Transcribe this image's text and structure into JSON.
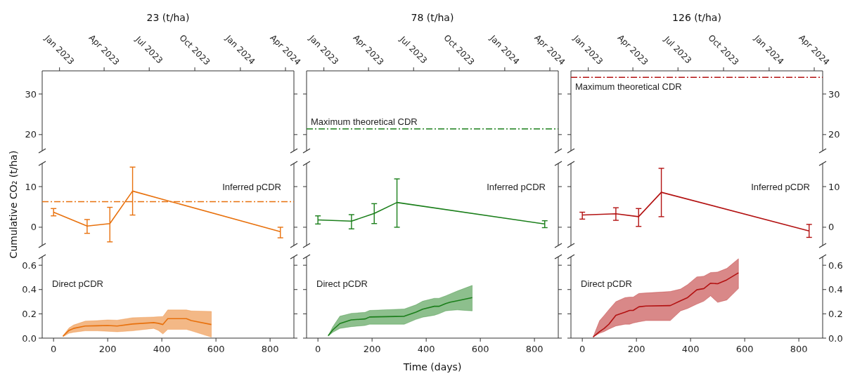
{
  "chart_data": [
    {
      "type": "line",
      "title": "23 (t/ha)",
      "ylim": [
        16,
        35.7
      ],
      "yticks": [
        20,
        30
      ],
      "xlim": [
        "2022-11-27",
        "2024-04-18"
      ],
      "xticks": [
        {
          "value": "2023-01-01",
          "label": "Jan 2023"
        },
        {
          "value": "2023-04-01",
          "label": "Apr 2023"
        },
        {
          "value": "2023-07-01",
          "label": "Jul 2023"
        },
        {
          "value": "2023-10-01",
          "label": "Oct 2023"
        },
        {
          "value": "2024-01-01",
          "label": "Jan 2024"
        },
        {
          "value": "2024-04-01",
          "label": "Apr 2024"
        }
      ]
    },
    {
      "type": "line",
      "title": "78 (t/ha)",
      "ylim": [
        16,
        35.7
      ],
      "yticks": [
        20,
        30
      ],
      "tick_labels": "x",
      "xlim": [
        "2022-11-27",
        "2024-04-18"
      ],
      "xticks": [
        {
          "value": "2023-01-01",
          "label": "Jan 2023"
        },
        {
          "value": "2023-04-01",
          "label": "Apr 2023"
        },
        {
          "value": "2023-07-01",
          "label": "Jul 2023"
        },
        {
          "value": "2023-10-01",
          "label": "Oct 2023"
        },
        {
          "value": "2024-01-01",
          "label": "Jan 2024"
        },
        {
          "value": "2024-04-01",
          "label": "Apr 2024"
        }
      ],
      "ref_lines": [
        {
          "axis": "y",
          "value": 21.4,
          "label": "Maximum theoretical CDR",
          "color": "#1b7f1b",
          "line_style": "dashdot"
        }
      ]
    },
    {
      "type": "line",
      "title": "126 (t/ha)",
      "y2lim": [
        16,
        35.7
      ],
      "y2ticks": [
        20,
        30
      ],
      "xlim": [
        "2022-11-27",
        "2024-04-18"
      ],
      "xticks": [
        {
          "value": "2023-01-01",
          "label": "Jan 2023"
        },
        {
          "value": "2023-04-01",
          "label": "Apr 2023"
        },
        {
          "value": "2023-07-01",
          "label": "Jul 2023"
        },
        {
          "value": "2023-10-01",
          "label": "Oct 2023"
        },
        {
          "value": "2024-01-01",
          "label": "Jan 2024"
        },
        {
          "value": "2024-04-01",
          "label": "Apr 2024"
        }
      ],
      "ref_lines": [
        {
          "axis": "y2",
          "value": 34.1,
          "label": "Maximum theoretical CDR",
          "color": "#b31212",
          "line_style": "dashdot"
        }
      ]
    },
    {
      "type": "line",
      "ylabel": "Cumulative CO₂ (t/ha)",
      "xlim": [
        -42,
        888
      ],
      "ylim": [
        -4.5,
        15.7
      ],
      "yticks": [
        0,
        10
      ],
      "tick_labels": "y",
      "annotations": [
        "Inferred pCDR"
      ],
      "ref_lines": [
        {
          "axis": "y",
          "value": 6.3,
          "color": "#e8710d",
          "line_style": "dashdot"
        }
      ],
      "series": [
        {
          "color": "#e8710d",
          "x": [
            0,
            124,
            208,
            292,
            838
          ],
          "values": [
            3.7,
            0.3,
            0.9,
            8.9,
            -1.1
          ],
          "errors": [
            [
              2.8,
              4.6
            ],
            [
              -1.5,
              1.9
            ],
            [
              -3.6,
              4.9
            ],
            [
              3.0,
              14.8
            ],
            [
              -2.6,
              0
            ]
          ]
        }
      ]
    },
    {
      "type": "line",
      "xlim": [
        -42,
        888
      ],
      "ylim": [
        -4.5,
        15.7
      ],
      "yticks": [
        0,
        10
      ],
      "tick_labels": false,
      "annotations": [
        "Inferred pCDR"
      ],
      "series": [
        {
          "color": "#1b7f1b",
          "x": [
            0,
            124,
            208,
            292,
            838
          ],
          "values": [
            1.8,
            1.5,
            3.4,
            6.1,
            0.8
          ],
          "errors": [
            [
              0.8,
              2.8
            ],
            [
              -0.4,
              3.1
            ],
            [
              0.9,
              5.8
            ],
            [
              0,
              11.9
            ],
            [
              -0.1,
              1.6
            ]
          ]
        }
      ]
    },
    {
      "type": "line",
      "xlim": [
        -42,
        888
      ],
      "y2lim": [
        -4.5,
        15.7
      ],
      "y2ticks": [
        0,
        10
      ],
      "annotations": [
        "Inferred pCDR"
      ],
      "series": [
        {
          "color": "#b31212",
          "axis": "y2",
          "x": [
            0,
            124,
            208,
            292,
            838
          ],
          "values": [
            3.0,
            3.3,
            2.6,
            8.6,
            -0.9
          ],
          "errors": [
            [
              2.0,
              3.7
            ],
            [
              1.7,
              4.8
            ],
            [
              0.2,
              4.6
            ],
            [
              2.6,
              14.5
            ],
            [
              -2.5,
              0.7
            ]
          ]
        }
      ]
    },
    {
      "type": "line",
      "xlim": [
        -42,
        888
      ],
      "xticks": [
        0,
        200,
        400,
        600,
        800
      ],
      "ylim": [
        0,
        0.67
      ],
      "yticks": [
        {
          "value": 0,
          "label": "0.0"
        },
        {
          "value": 0.2,
          "label": "0.2"
        },
        {
          "value": 0.4,
          "label": "0.4"
        },
        {
          "value": 0.6,
          "label": "0.6"
        }
      ],
      "annotations": [
        "Direct pCDR"
      ],
      "series": [
        {
          "color": "#e8710d",
          "x": [
            35,
            57,
            74,
            117,
            161,
            200,
            235,
            291,
            370,
            387,
            404,
            422,
            491,
            509,
            583
          ],
          "values": [
            0.016,
            0.064,
            0.08,
            0.1,
            0.102,
            0.104,
            0.1,
            0.116,
            0.128,
            0.122,
            0.112,
            0.16,
            0.16,
            0.144,
            0.112
          ],
          "upper": [
            0.02,
            0.084,
            0.108,
            0.14,
            0.144,
            0.15,
            0.148,
            0.168,
            0.174,
            0.176,
            0.178,
            0.232,
            0.232,
            0.224,
            0.22
          ],
          "lower": [
            0.012,
            0.04,
            0.048,
            0.06,
            0.06,
            0.056,
            0.052,
            0.06,
            0.08,
            0.064,
            0.034,
            0.072,
            0.072,
            0.06,
            0.008
          ]
        }
      ]
    },
    {
      "type": "line",
      "xlabel": "Time (days)",
      "xlim": [
        -42,
        888
      ],
      "xticks": [
        0,
        200,
        400,
        600,
        800
      ],
      "ylim": [
        0,
        0.67
      ],
      "yticks": [
        0,
        0.2,
        0.4,
        0.6
      ],
      "tick_labels": "x",
      "annotations": [
        "Direct pCDR"
      ],
      "series": [
        {
          "color": "#1b7f1b",
          "x": [
            38,
            55,
            81,
            123,
            174,
            191,
            319,
            362,
            387,
            430,
            447,
            472,
            489,
            515,
            570
          ],
          "values": [
            0.02,
            0.068,
            0.12,
            0.15,
            0.158,
            0.174,
            0.18,
            0.214,
            0.238,
            0.262,
            0.262,
            0.284,
            0.296,
            0.308,
            0.334
          ],
          "upper": [
            0.02,
            0.094,
            0.18,
            0.204,
            0.212,
            0.228,
            0.24,
            0.274,
            0.304,
            0.328,
            0.328,
            0.348,
            0.364,
            0.388,
            0.434
          ],
          "lower": [
            0.016,
            0.048,
            0.08,
            0.094,
            0.104,
            0.114,
            0.114,
            0.154,
            0.172,
            0.188,
            0.2,
            0.224,
            0.228,
            0.232,
            0.224
          ]
        }
      ]
    },
    {
      "type": "line",
      "xlim": [
        -42,
        888
      ],
      "xticks": [
        0,
        200,
        400,
        600,
        800
      ],
      "y2lim": [
        0,
        0.67
      ],
      "y2ticks": [
        {
          "value": 0,
          "label": "0.0"
        },
        {
          "value": 0.2,
          "label": "0.2"
        },
        {
          "value": 0.4,
          "label": "0.4"
        },
        {
          "value": 0.6,
          "label": "0.6"
        }
      ],
      "tick_labels": "x",
      "annotations": [
        "Direct pCDR"
      ],
      "series": [
        {
          "color": "#b31212",
          "axis": "y2",
          "x": [
            40,
            64,
            81,
            98,
            124,
            158,
            175,
            188,
            209,
            235,
            325,
            363,
            389,
            423,
            449,
            474,
            500,
            534,
            577
          ],
          "values": [
            0.01,
            0.054,
            0.08,
            0.114,
            0.188,
            0.214,
            0.228,
            0.228,
            0.258,
            0.264,
            0.268,
            0.308,
            0.334,
            0.398,
            0.408,
            0.452,
            0.448,
            0.48,
            0.538
          ],
          "upper": [
            0.01,
            0.144,
            0.188,
            0.234,
            0.3,
            0.334,
            0.338,
            0.338,
            0.368,
            0.372,
            0.384,
            0.404,
            0.44,
            0.504,
            0.51,
            0.54,
            0.544,
            0.574,
            0.654
          ],
          "lower": [
            0.01,
            0.04,
            0.054,
            0.074,
            0.1,
            0.114,
            0.114,
            0.124,
            0.134,
            0.144,
            0.144,
            0.224,
            0.244,
            0.28,
            0.304,
            0.348,
            0.294,
            0.314,
            0.408
          ]
        }
      ]
    }
  ]
}
